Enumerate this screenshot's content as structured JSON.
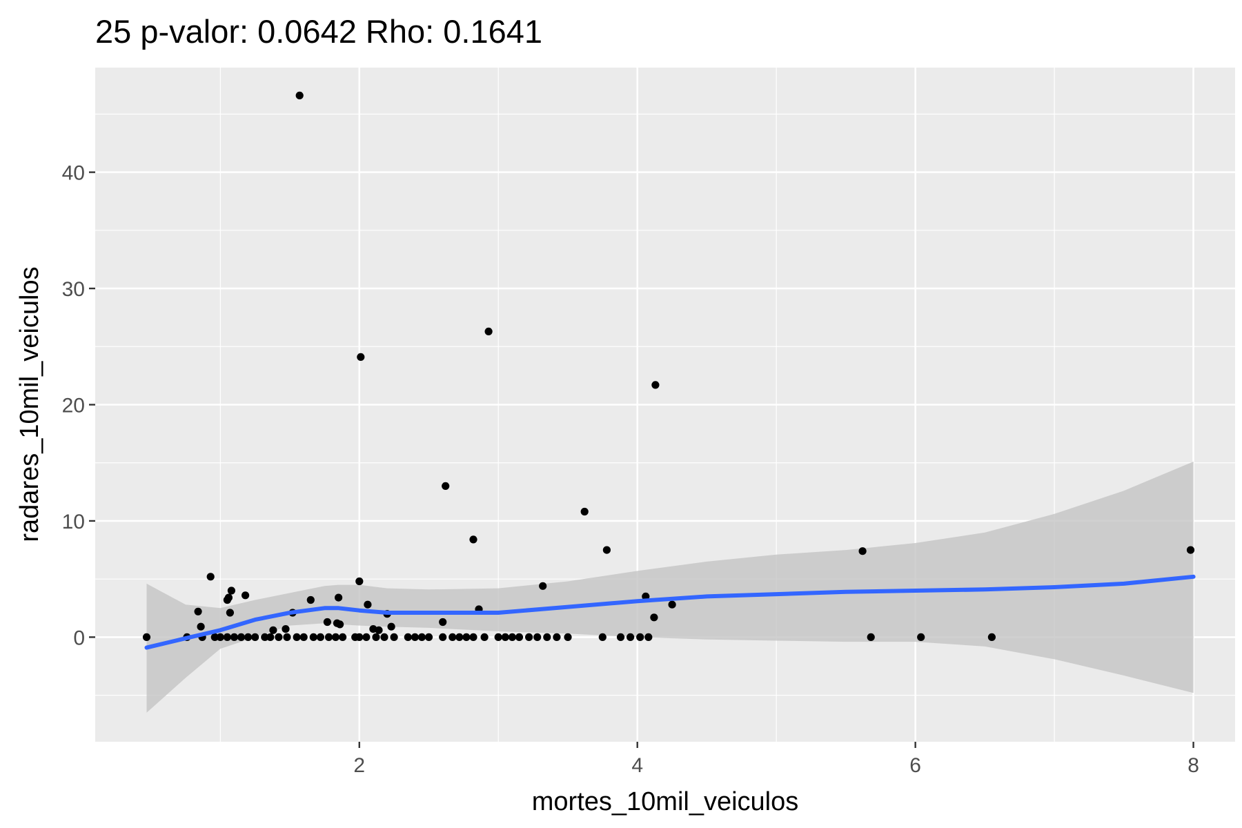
{
  "chart_data": {
    "type": "scatter",
    "title": "25 p-valor: 0.0642 Rho: 0.1641",
    "xlabel": "mortes_10mil_veiculos",
    "ylabel": "radares_10mil_veiculos",
    "xlim": [
      0.1,
      8.3
    ],
    "ylim": [
      -9,
      49
    ],
    "xticks": [
      2,
      4,
      6,
      8
    ],
    "yticks": [
      0,
      10,
      20,
      30,
      40
    ],
    "grid": true,
    "colors": {
      "panel": "#ebebeb",
      "grid": "#ffffff",
      "points": "#000000",
      "smooth_line": "#3366ff",
      "ribbon": "#c4c4c4",
      "tick_label": "#4d4d4d",
      "tick_mark": "#333333"
    },
    "points": [
      [
        0.47,
        0
      ],
      [
        0.76,
        0
      ],
      [
        0.87,
        0
      ],
      [
        0.96,
        0
      ],
      [
        1.0,
        0
      ],
      [
        1.05,
        0
      ],
      [
        1.1,
        0
      ],
      [
        1.15,
        0
      ],
      [
        1.2,
        0
      ],
      [
        1.25,
        0
      ],
      [
        1.32,
        0
      ],
      [
        1.36,
        0
      ],
      [
        1.42,
        0
      ],
      [
        1.48,
        0
      ],
      [
        1.55,
        0
      ],
      [
        1.6,
        0
      ],
      [
        1.67,
        0
      ],
      [
        1.72,
        0
      ],
      [
        1.78,
        0
      ],
      [
        1.83,
        0
      ],
      [
        1.88,
        0
      ],
      [
        1.97,
        0
      ],
      [
        2.0,
        0
      ],
      [
        2.05,
        0
      ],
      [
        2.12,
        0
      ],
      [
        2.18,
        0
      ],
      [
        2.25,
        0
      ],
      [
        2.35,
        0
      ],
      [
        2.4,
        0
      ],
      [
        2.45,
        0
      ],
      [
        2.5,
        0
      ],
      [
        2.6,
        0
      ],
      [
        2.67,
        0
      ],
      [
        2.72,
        0
      ],
      [
        2.77,
        0
      ],
      [
        2.82,
        0
      ],
      [
        2.9,
        0
      ],
      [
        3.0,
        0
      ],
      [
        3.05,
        0
      ],
      [
        3.1,
        0
      ],
      [
        3.15,
        0
      ],
      [
        3.22,
        0
      ],
      [
        3.28,
        0
      ],
      [
        3.35,
        0
      ],
      [
        3.42,
        0
      ],
      [
        3.5,
        0
      ],
      [
        3.75,
        0
      ],
      [
        3.88,
        0
      ],
      [
        3.95,
        0
      ],
      [
        4.02,
        0
      ],
      [
        4.08,
        0
      ],
      [
        5.68,
        0
      ],
      [
        6.04,
        0
      ],
      [
        6.55,
        0
      ],
      [
        0.84,
        2.2
      ],
      [
        0.86,
        0.9
      ],
      [
        0.93,
        5.2
      ],
      [
        1.05,
        3.2
      ],
      [
        1.06,
        3.4
      ],
      [
        1.08,
        4.0
      ],
      [
        1.07,
        2.1
      ],
      [
        1.18,
        3.6
      ],
      [
        1.38,
        0.6
      ],
      [
        1.47,
        0.7
      ],
      [
        1.52,
        2.1
      ],
      [
        1.65,
        3.2
      ],
      [
        1.77,
        1.3
      ],
      [
        1.85,
        3.4
      ],
      [
        1.84,
        1.2
      ],
      [
        1.86,
        1.1
      ],
      [
        2.0,
        4.8
      ],
      [
        2.06,
        2.8
      ],
      [
        2.1,
        0.7
      ],
      [
        2.14,
        0.6
      ],
      [
        2.2,
        2.0
      ],
      [
        2.23,
        0.9
      ],
      [
        2.6,
        1.3
      ],
      [
        2.62,
        13.0
      ],
      [
        2.82,
        8.4
      ],
      [
        2.86,
        2.4
      ],
      [
        2.93,
        26.3
      ],
      [
        3.32,
        4.4
      ],
      [
        3.62,
        10.8
      ],
      [
        3.78,
        7.5
      ],
      [
        4.06,
        3.5
      ],
      [
        4.12,
        1.7
      ],
      [
        4.13,
        21.7
      ],
      [
        4.25,
        2.8
      ],
      [
        5.62,
        7.4
      ],
      [
        7.98,
        7.5
      ],
      [
        1.57,
        46.6
      ],
      [
        2.01,
        24.1
      ]
    ],
    "smooth": {
      "x": [
        0.47,
        0.75,
        1.0,
        1.25,
        1.5,
        1.75,
        1.85,
        2.0,
        2.2,
        2.5,
        3.0,
        3.5,
        4.0,
        4.5,
        5.0,
        5.5,
        6.0,
        6.5,
        7.0,
        7.5,
        8.0
      ],
      "y": [
        -0.9,
        -0.1,
        0.6,
        1.5,
        2.1,
        2.5,
        2.5,
        2.3,
        2.1,
        2.1,
        2.1,
        2.6,
        3.1,
        3.5,
        3.7,
        3.9,
        4.0,
        4.1,
        4.3,
        4.6,
        5.2
      ],
      "lower": [
        -6.5,
        -3.5,
        -1.0,
        0.0,
        1.0,
        1.2,
        1.1,
        1.0,
        0.9,
        0.8,
        0.5,
        0.3,
        0.0,
        -0.2,
        -0.3,
        -0.4,
        -0.4,
        -0.8,
        -1.9,
        -3.3,
        -4.8
      ],
      "upper": [
        4.6,
        2.8,
        2.5,
        3.2,
        3.8,
        4.4,
        4.5,
        4.5,
        4.2,
        4.1,
        4.2,
        4.8,
        5.7,
        6.5,
        7.1,
        7.5,
        8.1,
        9.0,
        10.6,
        12.6,
        15.1
      ]
    }
  }
}
